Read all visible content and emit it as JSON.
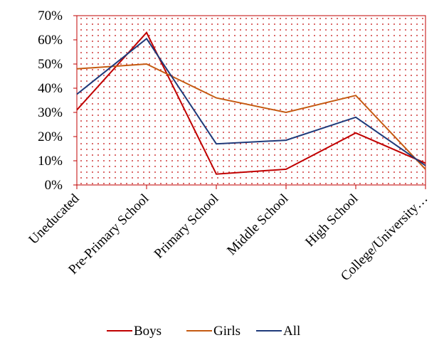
{
  "chart_data": {
    "type": "line",
    "categories": [
      "Uneducated",
      "Pre-Primary School",
      "Primary School",
      "Middle School",
      "High School",
      "College/University…"
    ],
    "series": [
      {
        "name": "Boys",
        "color": "#c00000",
        "values": [
          31,
          63,
          4.5,
          6.5,
          21.5,
          9
        ]
      },
      {
        "name": "Girls",
        "color": "#c55a11",
        "values": [
          48,
          50,
          36,
          30,
          37,
          6.5
        ]
      },
      {
        "name": "All",
        "color": "#1f3a7a",
        "values": [
          37.5,
          60.5,
          17,
          18.5,
          28,
          8
        ]
      }
    ],
    "ylim": [
      0,
      70
    ],
    "yticks": [
      {
        "value": 0,
        "label": "0%"
      },
      {
        "value": 10,
        "label": "10%"
      },
      {
        "value": 20,
        "label": "20%"
      },
      {
        "value": 30,
        "label": "30%"
      },
      {
        "value": 40,
        "label": "40%"
      },
      {
        "value": 50,
        "label": "50%"
      },
      {
        "value": 60,
        "label": "60%"
      },
      {
        "value": 70,
        "label": "70%"
      }
    ],
    "legend": "bottom"
  }
}
